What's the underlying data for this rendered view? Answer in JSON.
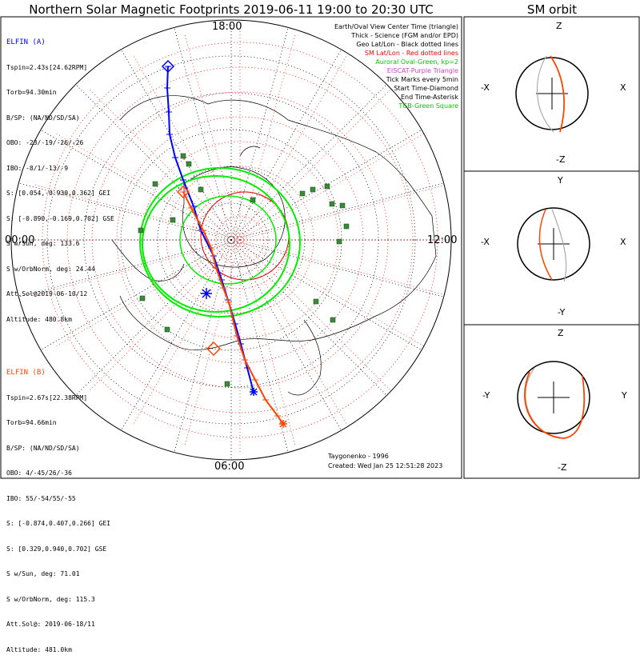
{
  "title": "Northern Solar Magnetic Footprints 2019-06-11 19:00 to 20:30 UTC",
  "orbit_title": "SM orbit",
  "elfin_a": {
    "name": "ELFIN (A)",
    "color": "#0000ff",
    "lines": [
      "Tspin=2.43s[24.62RPM]",
      "Torb=94.30min",
      "B/SP: (NA/ND/SD/SA)",
      "OBO: -23/-19/-26/-26",
      "IBO: -8/1/-13/-9",
      "S: [0.054,-0.930,0.362] GEI",
      "S: [-0.890,-0.169,0.702] GSE",
      "S w/Sun, deg: 133.6",
      "S w/OrbNorm, deg: 24.44",
      "Att.Sol@2019-06-10/12",
      "Altitude: 480.8km"
    ]
  },
  "elfin_b": {
    "name": "ELFIN (B)",
    "color": "#ff4400",
    "lines": [
      "Tspin=2.67s[22.38RPM]",
      "Torb=94.66min",
      "B/SP: (NA/ND/SD/SA)",
      "OBO: 4/-45/26/-36",
      "IBO: 55/-54/55/-55",
      "S: [-0.874,0.407,0.266] GEI",
      "S: [0.329,0.940,0.702] GSE",
      "S w/Sun, deg: 71.01",
      "S w/OrbNorm, deg: 115.3",
      "Att.Sol@: 2019-06-18/11",
      "Altitude: 481.0km"
    ]
  },
  "legend": [
    {
      "text": "Earth/Oval View Center Time (triangle)",
      "color": "#000000"
    },
    {
      "text": "Thick - Science (FGM and/or EPD)",
      "color": "#000000"
    },
    {
      "text": "Geo Lat/Lon - Black dotted lines",
      "color": "#000000"
    },
    {
      "text": "SM Lat/Lon - Red dotted lines",
      "color": "#ff0000"
    },
    {
      "text": "Auroral Oval-Green, kp=2",
      "color": "#00cc00"
    },
    {
      "text": "EISCAT-Purple Triangle",
      "color": "#cc44cc"
    },
    {
      "text": "Tick Marks every 5min",
      "color": "#000000"
    },
    {
      "text": "Start Time-Diamond",
      "color": "#000000"
    },
    {
      "text": "End Time-Asterisk",
      "color": "#000000"
    },
    {
      "text": "TGB-Green Square",
      "color": "#00cc00"
    }
  ],
  "credits": {
    "author": "Taygonenko - 1996",
    "created": "Created: Wed Jan 25 12:51:28 2023"
  },
  "chart_data": {
    "type": "polar",
    "time_labels": {
      "top": "18:00",
      "left": "00:00",
      "right": "12:00",
      "bottom": "06:00"
    },
    "orbit_panels": [
      {
        "top": "Z",
        "bottom": "-Z",
        "left": "-X",
        "right": "X"
      },
      {
        "top": "Y",
        "bottom": "-Y",
        "left": "-X",
        "right": "X"
      },
      {
        "top": "Z",
        "bottom": "-Z",
        "left": "-Y",
        "right": "Y"
      }
    ],
    "tracks": [
      {
        "name": "ELFIN (A)",
        "color": "#0000ff",
        "points": [
          [
            -79,
            -217
          ],
          [
            -80,
            -190
          ],
          [
            -78,
            -160
          ],
          [
            -77,
            -132
          ],
          [
            -70,
            -103
          ],
          [
            -60,
            -75
          ],
          [
            -47,
            -42
          ],
          [
            -38,
            -12
          ],
          [
            -22,
            20
          ],
          [
            -12,
            50
          ],
          [
            -4,
            75
          ],
          [
            5,
            105
          ],
          [
            12,
            130
          ],
          [
            20,
            160
          ],
          [
            28,
            190
          ]
        ]
      },
      {
        "name": "ELFIN (B)",
        "color": "#ff4400",
        "points": [
          [
            -60,
            -60
          ],
          [
            -50,
            -40
          ],
          [
            -35,
            -12
          ],
          [
            -25,
            10
          ],
          [
            -19,
            35
          ],
          [
            -10,
            60
          ],
          [
            -3,
            78
          ],
          [
            7,
            120
          ],
          [
            17,
            150
          ],
          [
            30,
            175
          ],
          [
            43,
            200
          ],
          [
            58,
            220
          ],
          [
            65,
            230
          ]
        ]
      }
    ],
    "tgb_squares": [
      [
        -113,
        -12
      ],
      [
        -95,
        -70
      ],
      [
        -60,
        -105
      ],
      [
        -53,
        -95
      ],
      [
        89,
        -58
      ],
      [
        102,
        -63
      ],
      [
        120,
        -67
      ],
      [
        126,
        -45
      ],
      [
        139,
        -43
      ],
      [
        144,
        -17
      ],
      [
        135,
        2
      ],
      [
        106,
        77
      ],
      [
        127,
        100
      ],
      [
        -111,
        73
      ],
      [
        -80,
        112
      ],
      [
        -5,
        180
      ],
      [
        -73,
        -25
      ],
      [
        27,
        -50
      ],
      [
        -38,
        -63
      ]
    ]
  }
}
